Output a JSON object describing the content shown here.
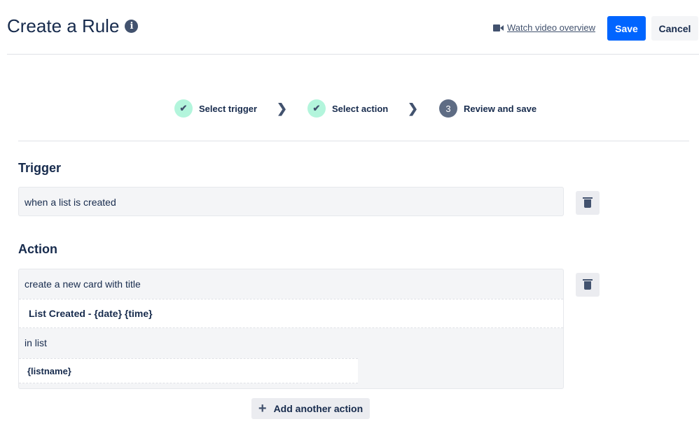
{
  "header": {
    "title": "Create a Rule",
    "info_icon": "info-circle-icon",
    "watch_link": "Watch video overview",
    "save": "Save",
    "cancel": "Cancel"
  },
  "steps": [
    {
      "label": "Select trigger",
      "state": "done"
    },
    {
      "label": "Select action",
      "state": "done"
    },
    {
      "number": "3",
      "label": "Review and save",
      "state": "current"
    }
  ],
  "trigger": {
    "heading": "Trigger",
    "text": "when a list is created"
  },
  "action": {
    "heading": "Action",
    "text": "create a new card with title",
    "title_value": "List Created - {date} {time}",
    "in_list_label": "in list",
    "list_value": "{listname}"
  },
  "add_action": "Add another action",
  "colors": {
    "primary": "#0065ff",
    "done": "#b3f5dc",
    "current": "#5e6c84"
  }
}
